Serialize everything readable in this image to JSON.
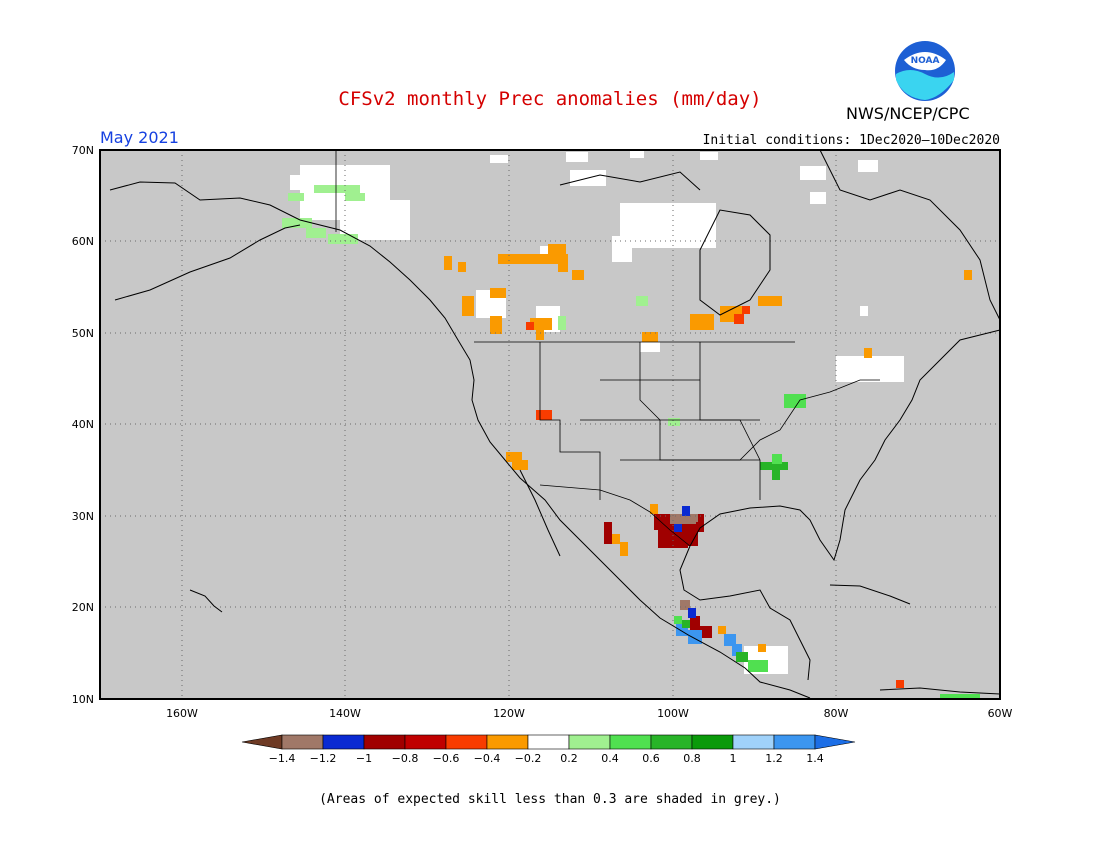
{
  "title": "CFSv2 monthly Prec anomalies (mm/day)",
  "month": "May 2021",
  "initial_conditions": "Initial conditions: 1Dec2020–10Dec2020",
  "agency": "NWS/NCEP/CPC",
  "logo_text": "NOAA",
  "footnote": "(Areas of expected skill less than 0.3 are shaded in grey.)",
  "lat_labels": [
    "70N",
    "60N",
    "50N",
    "40N",
    "30N",
    "20N",
    "10N"
  ],
  "lon_labels": [
    "160W",
    "140W",
    "120W",
    "100W",
    "80W",
    "60W"
  ],
  "colorbar": {
    "labels": [
      "−1.4",
      "−1.2",
      "−1",
      "−0.8",
      "−0.6",
      "−0.4",
      "−0.2",
      "0.2",
      "0.4",
      "0.6",
      "0.8",
      "1",
      "1.2",
      "1.4"
    ],
    "colors": [
      "#6e3a24",
      "#a07868",
      "#0a2ad2",
      "#a00000",
      "#c00000",
      "#f83c00",
      "#fa9a00",
      "#ffffff",
      "#a0f090",
      "#50e050",
      "#28b428",
      "#0a9a0a",
      "#a0d2fa",
      "#3c96f0",
      "#1c6ee6"
    ]
  },
  "colors": {
    "skill_grey": "#c8c8c8",
    "title_red": "#d40000",
    "month_blue": "#1540e0"
  }
}
